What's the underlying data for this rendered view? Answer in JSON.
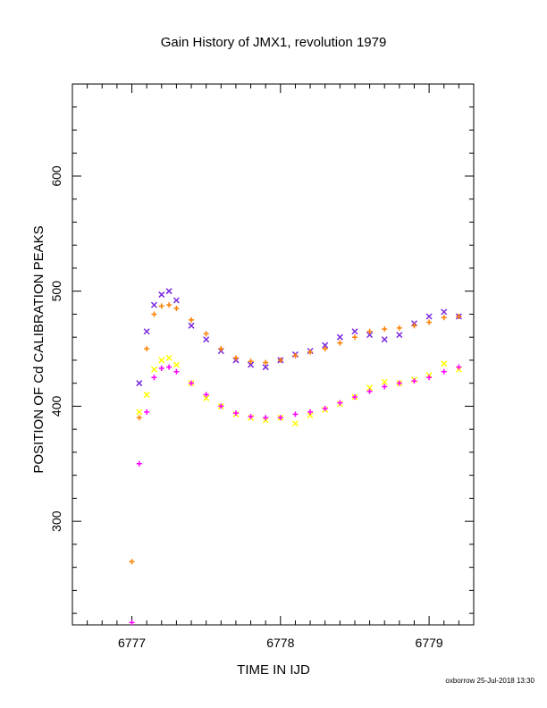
{
  "footer_text": "oxborrow 25-Jul-2018 13:30",
  "colors": {
    "orange": "#ff7f00",
    "magenta": "#ff00ff",
    "purple": "#7a28e0",
    "yellow": "#ffff00"
  },
  "chart_data": {
    "type": "scatter",
    "title": "Gain History of JMX1, revolution 1979",
    "xlabel": "TIME IN IJD",
    "ylabel": "POSITION OF Cd CALIBRATION PEAKS",
    "xlim": [
      6776.6,
      6779.3
    ],
    "ylim": [
      210,
      680
    ],
    "xticks": [
      "6777",
      "6778",
      "6779"
    ],
    "yticks": [
      "300",
      "400",
      "500",
      "600"
    ],
    "grid": false,
    "legend": "none",
    "series": [
      {
        "marker": "plus",
        "color": "#ff7f00",
        "x": [
          6777.0,
          6777.05,
          6777.1,
          6777.15,
          6777.2,
          6777.25,
          6777.3,
          6777.4,
          6777.5,
          6777.6,
          6777.7,
          6777.8,
          6777.9,
          6778.0,
          6778.1,
          6778.2,
          6778.3,
          6778.4,
          6778.5,
          6778.6,
          6778.7,
          6778.8,
          6778.9,
          6779.0,
          6779.1,
          6779.2
        ],
        "y": [
          265,
          390,
          450,
          480,
          487,
          488,
          485,
          475,
          463,
          450,
          442,
          439,
          438,
          440,
          444,
          447,
          450,
          455,
          460,
          465,
          467,
          468,
          470,
          473,
          477,
          478
        ]
      },
      {
        "marker": "plus",
        "color": "#ff00ff",
        "x": [
          6777.0,
          6777.05,
          6777.1,
          6777.15,
          6777.2,
          6777.25,
          6777.3,
          6777.4,
          6777.5,
          6777.6,
          6777.7,
          6777.8,
          6777.9,
          6778.0,
          6778.1,
          6778.2,
          6778.3,
          6778.4,
          6778.5,
          6778.6,
          6778.7,
          6778.8,
          6778.9,
          6779.0,
          6779.1,
          6779.2
        ],
        "y": [
          212,
          350,
          395,
          425,
          433,
          434,
          430,
          420,
          410,
          400,
          394,
          391,
          390,
          390,
          393,
          395,
          398,
          403,
          408,
          413,
          417,
          420,
          422,
          425,
          430,
          434
        ]
      },
      {
        "marker": "cross",
        "color": "#7a28e0",
        "x": [
          6777.05,
          6777.1,
          6777.15,
          6777.2,
          6777.25,
          6777.3,
          6777.4,
          6777.5,
          6777.6,
          6777.7,
          6777.8,
          6777.9,
          6778.0,
          6778.1,
          6778.2,
          6778.3,
          6778.4,
          6778.5,
          6778.6,
          6778.7,
          6778.8,
          6778.9,
          6779.0,
          6779.1,
          6779.2
        ],
        "y": [
          420,
          465,
          488,
          497,
          500,
          492,
          470,
          458,
          448,
          440,
          436,
          434,
          440,
          445,
          448,
          453,
          460,
          465,
          462,
          458,
          462,
          472,
          478,
          482,
          478
        ]
      },
      {
        "marker": "cross",
        "color": "#ffff00",
        "x": [
          6777.05,
          6777.1,
          6777.15,
          6777.2,
          6777.25,
          6777.3,
          6777.4,
          6777.5,
          6777.6,
          6777.7,
          6777.8,
          6777.9,
          6778.0,
          6778.1,
          6778.2,
          6778.3,
          6778.4,
          6778.5,
          6778.6,
          6778.7,
          6778.8,
          6778.9,
          6779.0,
          6779.1,
          6779.2
        ],
        "y": [
          395,
          410,
          432,
          440,
          442,
          436,
          420,
          407,
          400,
          393,
          390,
          388,
          390,
          385,
          392,
          397,
          402,
          408,
          416,
          421,
          420,
          423,
          427,
          437,
          432
        ]
      }
    ]
  }
}
